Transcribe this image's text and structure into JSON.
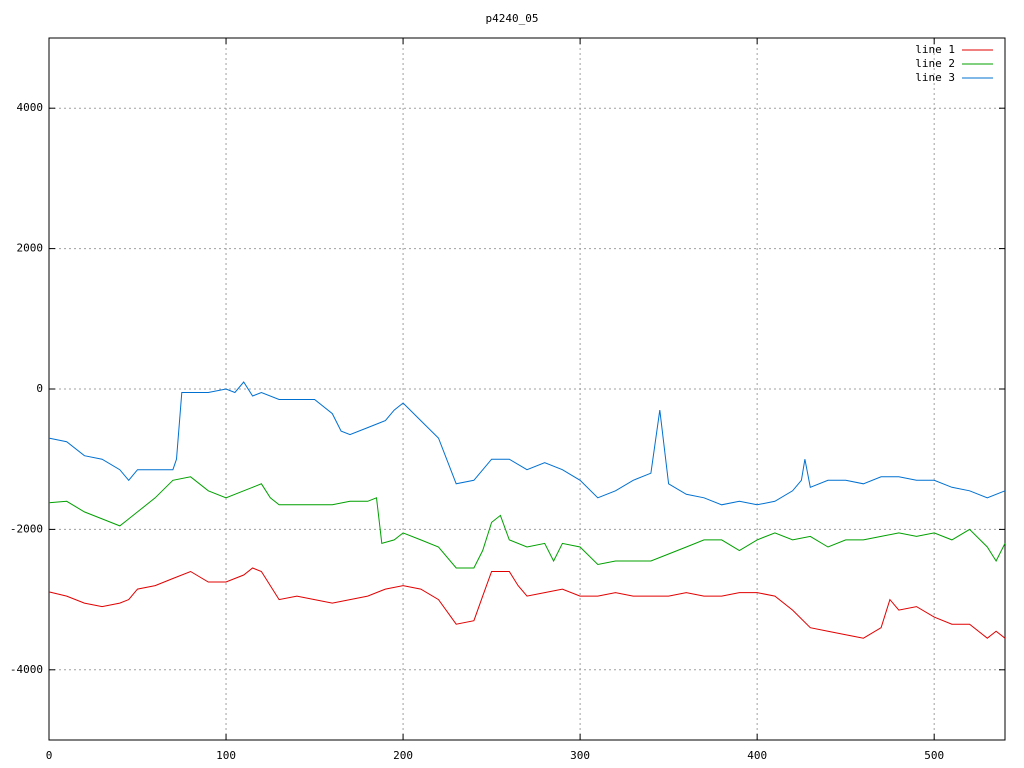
{
  "chart_data": {
    "type": "line",
    "title": "p4240_05",
    "xlim": [
      0,
      540
    ],
    "ylim": [
      -5000,
      5000
    ],
    "xticks": [
      0,
      100,
      200,
      300,
      400,
      500
    ],
    "yticks": [
      -4000,
      -2000,
      0,
      2000,
      4000
    ],
    "grid": true,
    "legend": "top-right",
    "series": [
      {
        "name": "line 1",
        "color": "#e00000",
        "x": [
          0,
          10,
          20,
          30,
          40,
          45,
          50,
          60,
          70,
          80,
          90,
          100,
          110,
          115,
          120,
          125,
          130,
          140,
          150,
          160,
          170,
          180,
          190,
          200,
          210,
          220,
          230,
          240,
          245,
          250,
          260,
          265,
          270,
          280,
          290,
          300,
          310,
          320,
          330,
          340,
          350,
          360,
          370,
          380,
          390,
          400,
          410,
          420,
          430,
          440,
          450,
          460,
          470,
          475,
          480,
          490,
          500,
          510,
          520,
          530,
          535,
          540
        ],
        "values": [
          -2890,
          -2950,
          -3050,
          -3100,
          -3050,
          -3000,
          -2850,
          -2800,
          -2700,
          -2600,
          -2750,
          -2750,
          -2650,
          -2550,
          -2600,
          -2800,
          -3000,
          -2950,
          -3000,
          -3050,
          -3000,
          -2950,
          -2850,
          -2800,
          -2850,
          -3000,
          -3350,
          -3300,
          -2950,
          -2600,
          -2600,
          -2800,
          -2950,
          -2900,
          -2850,
          -2950,
          -2950,
          -2900,
          -2950,
          -2950,
          -2950,
          -2900,
          -2950,
          -2950,
          -2900,
          -2900,
          -2950,
          -3150,
          -3400,
          -3450,
          -3500,
          -3550,
          -3400,
          -3000,
          -3150,
          -3100,
          -3250,
          -3350,
          -3350,
          -3550,
          -3450,
          -3550
        ]
      },
      {
        "name": "line 2",
        "color": "#00a000",
        "x": [
          0,
          10,
          20,
          30,
          40,
          45,
          50,
          60,
          70,
          80,
          90,
          100,
          110,
          115,
          120,
          125,
          130,
          140,
          150,
          160,
          170,
          180,
          185,
          188,
          195,
          200,
          210,
          220,
          230,
          240,
          245,
          250,
          255,
          260,
          270,
          280,
          285,
          290,
          300,
          310,
          320,
          330,
          340,
          350,
          360,
          370,
          380,
          390,
          400,
          410,
          420,
          430,
          440,
          450,
          460,
          470,
          480,
          490,
          500,
          510,
          520,
          530,
          535,
          540
        ],
        "values": [
          -1620,
          -1600,
          -1750,
          -1850,
          -1950,
          -1850,
          -1750,
          -1550,
          -1300,
          -1250,
          -1450,
          -1550,
          -1450,
          -1400,
          -1350,
          -1550,
          -1650,
          -1650,
          -1650,
          -1650,
          -1600,
          -1600,
          -1550,
          -2200,
          -2150,
          -2050,
          -2150,
          -2250,
          -2550,
          -2550,
          -2300,
          -1900,
          -1800,
          -2150,
          -2250,
          -2200,
          -2450,
          -2200,
          -2250,
          -2500,
          -2450,
          -2450,
          -2450,
          -2350,
          -2250,
          -2150,
          -2150,
          -2300,
          -2150,
          -2050,
          -2150,
          -2100,
          -2250,
          -2150,
          -2150,
          -2100,
          -2050,
          -2100,
          -2050,
          -2150,
          -2000,
          -2250,
          -2450,
          -2200
        ]
      },
      {
        "name": "line 3",
        "color": "#0070d0",
        "x": [
          0,
          10,
          20,
          30,
          40,
          45,
          50,
          60,
          70,
          72,
          75,
          80,
          90,
          100,
          105,
          110,
          115,
          120,
          130,
          140,
          150,
          160,
          165,
          170,
          180,
          190,
          195,
          200,
          210,
          220,
          230,
          240,
          250,
          260,
          270,
          280,
          290,
          300,
          310,
          320,
          330,
          340,
          345,
          350,
          360,
          370,
          380,
          390,
          400,
          410,
          420,
          425,
          427,
          430,
          440,
          450,
          460,
          470,
          480,
          490,
          500,
          510,
          520,
          530,
          540
        ],
        "values": [
          -700,
          -750,
          -950,
          -1000,
          -1150,
          -1300,
          -1150,
          -1150,
          -1150,
          -1000,
          -50,
          -50,
          -50,
          0,
          -50,
          100,
          -100,
          -50,
          -150,
          -150,
          -150,
          -350,
          -600,
          -650,
          -550,
          -450,
          -300,
          -200,
          -450,
          -700,
          -1350,
          -1300,
          -1000,
          -1000,
          -1150,
          -1050,
          -1150,
          -1300,
          -1550,
          -1450,
          -1300,
          -1200,
          -300,
          -1350,
          -1500,
          -1550,
          -1650,
          -1600,
          -1650,
          -1600,
          -1450,
          -1300,
          -1000,
          -1400,
          -1300,
          -1300,
          -1350,
          -1250,
          -1250,
          -1300,
          -1300,
          -1400,
          -1450,
          -1550,
          -1450
        ]
      }
    ]
  }
}
